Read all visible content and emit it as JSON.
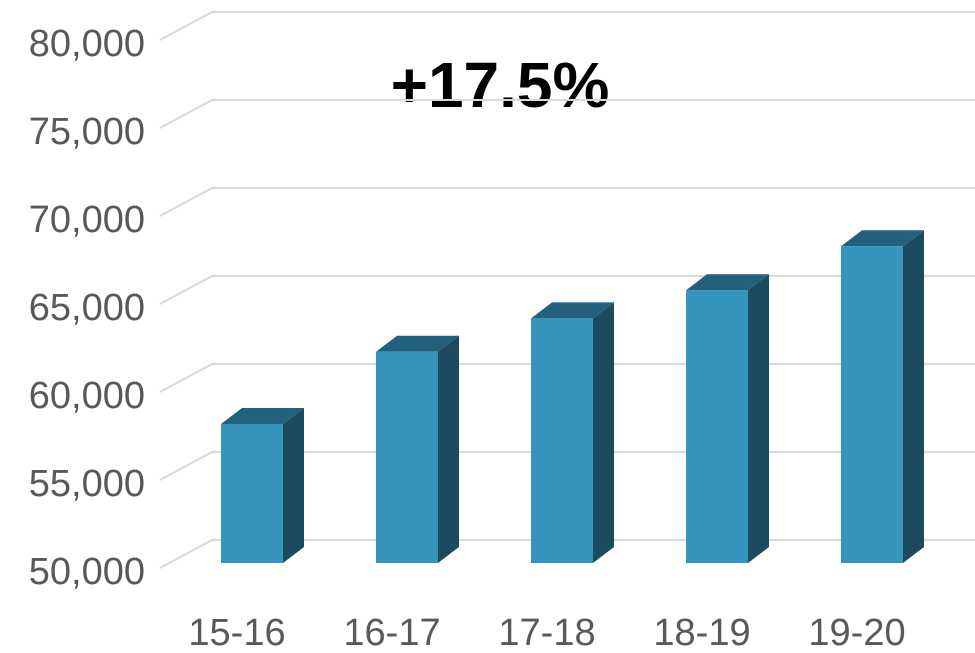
{
  "chart_data": {
    "type": "bar3d",
    "annotation": "+17.5%",
    "categories": [
      "15-16",
      "16-17",
      "17-18",
      "18-19",
      "19-20"
    ],
    "values": [
      57900,
      62000,
      63900,
      65500,
      68000
    ],
    "color": "#3595bd",
    "ylim": [
      50000,
      80000
    ],
    "yticks": [
      {
        "value": 50000,
        "label": "50,000"
      },
      {
        "value": 55000,
        "label": "55,000"
      },
      {
        "value": 60000,
        "label": "60,000"
      },
      {
        "value": 65000,
        "label": "65,000"
      },
      {
        "value": 70000,
        "label": "70,000"
      },
      {
        "value": 75000,
        "label": "75,000"
      },
      {
        "value": 80000,
        "label": "80,000"
      }
    ],
    "grid": true
  }
}
